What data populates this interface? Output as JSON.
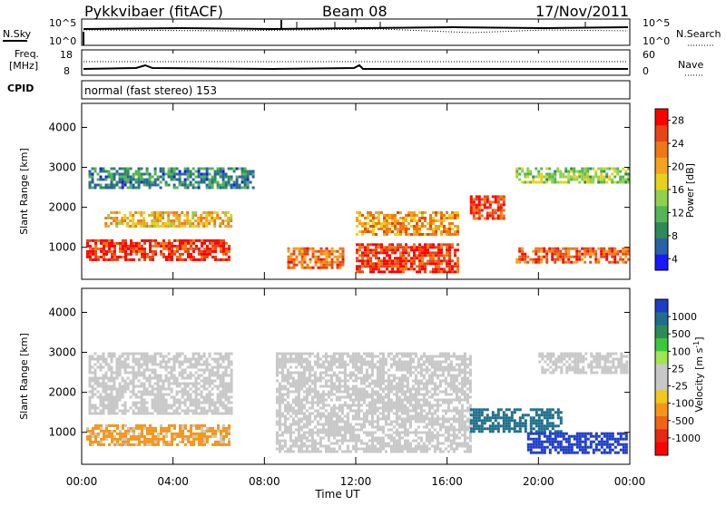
{
  "header": {
    "station": "Pykkvibaer (fitACF)",
    "beam": "Beam 08",
    "date": "17/Nov/2011"
  },
  "top_panel": {
    "nsky_label": "N.Sky",
    "nsky_ticks": [
      "10^5",
      "10^0"
    ],
    "nsearch_label": "N.Search",
    "nsearch_ticks": [
      "10^5",
      "10^0"
    ]
  },
  "freq_panel": {
    "freq_label_1": "Freq.",
    "freq_label_2": "[MHz]",
    "freq_ticks": [
      "18",
      "8"
    ],
    "nave_label": "Nave",
    "nave_ticks": [
      "60",
      "0"
    ]
  },
  "cpid": {
    "label": "CPID",
    "value": "normal (fast stereo) 153"
  },
  "chart_data": [
    {
      "type": "heatmap",
      "title": "",
      "xlabel": "Time UT",
      "ylabel": "Slant Range [km]",
      "x_ticks": [
        "00:00",
        "04:00",
        "08:00",
        "12:00",
        "16:00",
        "20:00",
        "00:00"
      ],
      "xlim_hours": [
        0,
        24
      ],
      "y_ticks": [
        1000,
        2000,
        3000,
        4000
      ],
      "ylim": [
        200,
        4600
      ],
      "colorbar": {
        "label": "Power [dB]",
        "ticks": [
          4,
          8,
          12,
          16,
          20,
          24,
          28
        ],
        "colors": [
          "#1919ff",
          "#2a60a8",
          "#2e8b57",
          "#55b555",
          "#8fd24e",
          "#e6d21e",
          "#f5a21e",
          "#f07814",
          "#e64616",
          "#ff0000"
        ]
      },
      "bands": [
        {
          "t0": 0.2,
          "t1": 6.5,
          "r0": 700,
          "r1": 1200,
          "power": 28
        },
        {
          "t0": 1.0,
          "t1": 6.5,
          "r0": 1500,
          "r1": 1900,
          "power": 20
        },
        {
          "t0": 0.3,
          "t1": 7.5,
          "r0": 2500,
          "r1": 3000,
          "power": 8
        },
        {
          "t0": 9.0,
          "t1": 11.5,
          "r0": 500,
          "r1": 1000,
          "power": 24
        },
        {
          "t0": 12.0,
          "t1": 16.5,
          "r0": 400,
          "r1": 1100,
          "power": 28
        },
        {
          "t0": 12.0,
          "t1": 16.5,
          "r0": 1300,
          "r1": 1900,
          "power": 22
        },
        {
          "t0": 17.0,
          "t1": 18.5,
          "r0": 1700,
          "r1": 2300,
          "power": 28
        },
        {
          "t0": 19.0,
          "t1": 23.9,
          "r0": 600,
          "r1": 1000,
          "power": 26
        },
        {
          "t0": 19.0,
          "t1": 23.9,
          "r0": 2600,
          "r1": 3000,
          "power": 14
        }
      ]
    },
    {
      "type": "heatmap",
      "title": "",
      "xlabel": "Time UT",
      "ylabel": "Slant Range [km]",
      "x_ticks": [
        "00:00",
        "04:00",
        "08:00",
        "12:00",
        "16:00",
        "20:00",
        "00:00"
      ],
      "xlim_hours": [
        0,
        24
      ],
      "y_ticks": [
        1000,
        2000,
        3000,
        4000
      ],
      "ylim": [
        200,
        4600
      ],
      "colorbar": {
        "label": "Velocity [m s",
        "unit_exponent": "-1",
        "unit_close": "]",
        "ticks": [
          "1000",
          "500",
          "100",
          "25",
          "-25",
          "-100",
          "-500",
          "-1000"
        ],
        "colors": [
          "#1e3cc8",
          "#1e6e8c",
          "#2e8b57",
          "#3cc83c",
          "#a0e650",
          "#c8c8c8",
          "#c8c8c8",
          "#f0c81e",
          "#f59619",
          "#f06414",
          "#e62814",
          "#ff0000"
        ]
      },
      "bands": [
        {
          "t0": 0.2,
          "t1": 6.5,
          "r0": 700,
          "r1": 1200,
          "velocity": -100
        },
        {
          "t0": 0.3,
          "t1": 6.5,
          "r0": 1500,
          "r1": 3000,
          "velocity": 0
        },
        {
          "t0": 8.5,
          "t1": 17.0,
          "r0": 500,
          "r1": 3000,
          "velocity": 0
        },
        {
          "t0": 17.0,
          "t1": 21.0,
          "r0": 1000,
          "r1": 1600,
          "velocity": 500
        },
        {
          "t0": 19.5,
          "t1": 23.9,
          "r0": 500,
          "r1": 1000,
          "velocity": 1000
        },
        {
          "t0": 20.0,
          "t1": 23.9,
          "r0": 2500,
          "r1": 3000,
          "velocity": 0
        }
      ]
    }
  ]
}
